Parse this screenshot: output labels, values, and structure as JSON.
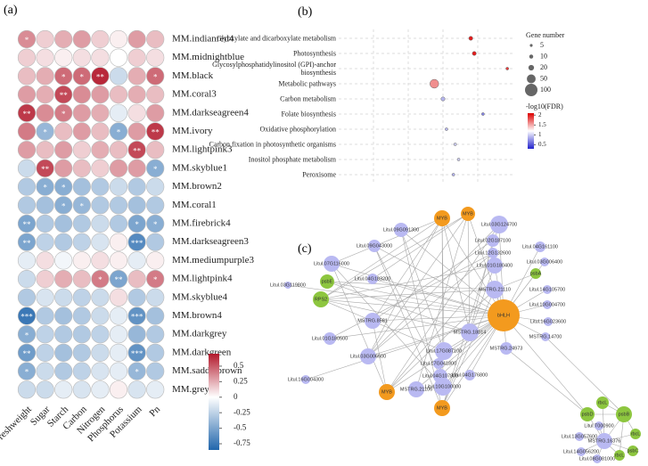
{
  "chart_data": [
    {
      "type": "heatmap",
      "label": "(a)",
      "rows": [
        "MM.indianred4",
        "MM.midnightblue",
        "MM.black",
        "MM.coral3",
        "MM.darkseagreen4",
        "MM.ivory",
        "MM.lightpink3",
        "MM.skyblue1",
        "MM.brown2",
        "MM.coral1",
        "MM.firebrick4",
        "MM.darkseagreen3",
        "MM.mediumpurple3",
        "MM.lightpink4",
        "MM.skyblue4",
        "MM.brown4",
        "MM.darkgrey",
        "MM.darkgreen",
        "MM.saddlebrown",
        "MM.grey"
      ],
      "columns": [
        "Freshweight",
        "Sugar",
        "Starch",
        "Carbon",
        "Nitrogen",
        "Phosphorus",
        "Potassium",
        "Pn"
      ],
      "values": [
        [
          0.35,
          0.15,
          0.25,
          0.3,
          0.15,
          0.05,
          0.3,
          0.2
        ],
        [
          0.15,
          0.1,
          0.05,
          0.1,
          0.1,
          0.0,
          0.15,
          0.1
        ],
        [
          0.2,
          0.25,
          0.45,
          0.45,
          0.65,
          -0.2,
          0.25,
          0.45
        ],
        [
          0.3,
          0.25,
          0.55,
          0.35,
          0.3,
          0.2,
          0.25,
          0.2
        ],
        [
          0.6,
          0.35,
          0.4,
          0.3,
          0.25,
          -0.1,
          0.1,
          0.3
        ],
        [
          0.4,
          -0.4,
          0.2,
          0.3,
          0.2,
          -0.45,
          0.3,
          0.6
        ],
        [
          0.3,
          0.2,
          0.3,
          0.15,
          0.25,
          0.2,
          0.55,
          0.2
        ],
        [
          -0.2,
          0.55,
          0.3,
          0.2,
          0.15,
          0.3,
          0.3,
          -0.45
        ],
        [
          -0.3,
          -0.45,
          -0.45,
          -0.35,
          -0.3,
          -0.2,
          -0.3,
          -0.2
        ],
        [
          -0.3,
          -0.35,
          -0.45,
          -0.4,
          -0.3,
          -0.3,
          -0.35,
          -0.3
        ],
        [
          -0.5,
          -0.3,
          -0.35,
          -0.3,
          -0.2,
          -0.3,
          -0.5,
          -0.45
        ],
        [
          -0.5,
          -0.25,
          -0.3,
          -0.25,
          -0.15,
          0.05,
          -0.65,
          -0.3
        ],
        [
          -0.1,
          0.1,
          -0.05,
          0.05,
          0.1,
          0.05,
          -0.1,
          0.05
        ],
        [
          -0.2,
          0.15,
          0.25,
          0.2,
          0.4,
          -0.5,
          0.2,
          0.4
        ],
        [
          -0.3,
          -0.15,
          -0.2,
          -0.25,
          -0.2,
          0.1,
          -0.3,
          -0.2
        ],
        [
          -0.75,
          -0.3,
          -0.35,
          -0.3,
          -0.2,
          -0.1,
          -0.6,
          -0.35
        ],
        [
          -0.45,
          -0.25,
          -0.3,
          -0.3,
          -0.25,
          -0.1,
          -0.4,
          -0.3
        ],
        [
          -0.55,
          -0.25,
          -0.35,
          -0.3,
          -0.2,
          -0.1,
          -0.6,
          -0.3
        ],
        [
          -0.45,
          -0.2,
          -0.3,
          -0.25,
          -0.15,
          -0.1,
          -0.4,
          -0.3
        ],
        [
          -0.2,
          -0.2,
          -0.1,
          -0.15,
          -0.1,
          0.05,
          -0.15,
          -0.1
        ]
      ],
      "annotations": [
        [
          "*",
          null,
          null,
          null,
          null,
          null,
          null,
          null
        ],
        [
          null,
          null,
          null,
          null,
          null,
          null,
          null,
          null
        ],
        [
          null,
          null,
          "*",
          "*",
          "**",
          null,
          null,
          "*"
        ],
        [
          null,
          null,
          "**",
          null,
          null,
          null,
          null,
          null
        ],
        [
          "**",
          null,
          "*",
          null,
          null,
          null,
          null,
          null
        ],
        [
          null,
          "*",
          null,
          null,
          null,
          "*",
          null,
          "**"
        ],
        [
          null,
          null,
          null,
          null,
          null,
          null,
          "**",
          null
        ],
        [
          null,
          "**",
          null,
          null,
          null,
          null,
          null,
          "*"
        ],
        [
          null,
          "*",
          "*",
          null,
          null,
          null,
          null,
          null
        ],
        [
          null,
          null,
          "*",
          "*",
          null,
          null,
          null,
          null
        ],
        [
          "**",
          null,
          null,
          null,
          null,
          null,
          "*",
          "*"
        ],
        [
          "**",
          null,
          null,
          null,
          null,
          null,
          "***",
          null
        ],
        [
          null,
          null,
          null,
          null,
          null,
          null,
          null,
          null
        ],
        [
          null,
          null,
          null,
          null,
          "*",
          "**",
          null,
          "*"
        ],
        [
          null,
          null,
          null,
          null,
          null,
          null,
          null,
          null
        ],
        [
          "***",
          null,
          null,
          null,
          null,
          null,
          "***",
          null
        ],
        [
          "*",
          null,
          null,
          null,
          null,
          null,
          null,
          null
        ],
        [
          "**",
          null,
          null,
          null,
          null,
          null,
          "***",
          null
        ],
        [
          "*",
          null,
          null,
          null,
          null,
          null,
          "*",
          null
        ],
        [
          null,
          null,
          null,
          null,
          null,
          null,
          null,
          null
        ]
      ],
      "clim": [
        -0.85,
        0.7
      ],
      "cticks": [
        0.5,
        0.25,
        0,
        -0.25,
        -0.5,
        -0.75
      ],
      "colors": [
        "#2166ac",
        "#ffffff",
        "#b2182b"
      ]
    },
    {
      "type": "bubble",
      "label": "(b)",
      "categories": [
        "Glyoxylate and dicarboxylate metabolism",
        "Photosynthesis",
        "Glycosylphosphatidylinositol (GPI)-anchor biosynthesis",
        "Metabolic pathways",
        "Carbon metabolism",
        "Folate biosynthesis",
        "Oxidative phosphorylation",
        "Carbon fixation in photosynthetic organisms",
        "Inositol phosphate metabolism",
        "Peroxisome"
      ],
      "x": [
        0.76,
        0.78,
        0.97,
        0.55,
        0.6,
        0.83,
        0.62,
        0.67,
        0.69,
        0.66
      ],
      "sizes": [
        10,
        10,
        5,
        50,
        10,
        5,
        5,
        5,
        5,
        5
      ],
      "color_values": [
        2.0,
        2.0,
        1.9,
        1.6,
        0.9,
        0.7,
        0.9,
        1.0,
        1.0,
        0.9
      ],
      "xlim": [
        0,
        1
      ],
      "size_legend_title": "Gene number",
      "size_ticks": [
        5,
        10,
        20,
        50,
        100
      ],
      "color_title": "-log10(FDR)",
      "clim": [
        0.3,
        2.1
      ],
      "cticks": [
        2,
        1.5,
        1,
        0.5
      ],
      "colors": [
        "#2222cc",
        "#ffffff",
        "#dd0000"
      ],
      "grid": true
    }
  ],
  "network": {
    "label": "(c)",
    "nodes": [
      {
        "label": "Litul.09G091300",
        "color": "#b9b9f2"
      },
      {
        "label": "MYB",
        "color": "#f39a1e"
      },
      {
        "label": "MYB",
        "color": "#f39a1e"
      },
      {
        "label": "Litul.03G124700",
        "color": "#b9b9f2"
      },
      {
        "label": "Litul.09G043000",
        "color": "#b9b9f2"
      },
      {
        "label": "Litul.02G187100",
        "color": "#b9b9f2"
      },
      {
        "label": "Litul.12G132600",
        "color": "#b9b9f2"
      },
      {
        "label": "Litul.04G161100",
        "color": "#b9b9f2"
      },
      {
        "label": "Litul.03G006400",
        "color": "#b9b9f2"
      },
      {
        "label": "Litul.07G116000",
        "color": "#b9b9f2"
      },
      {
        "label": "Litul.01G180400",
        "color": "#b9b9f2"
      },
      {
        "label": "psbE",
        "color": "#8dc63f"
      },
      {
        "label": "psbA",
        "color": "#8dc63f"
      },
      {
        "label": "Litul.03G119800",
        "color": "#b9b9f2"
      },
      {
        "label": "Litul.04G183200",
        "color": "#b9b9f2"
      },
      {
        "label": "Litul.14G105700",
        "color": "#b9b9f2"
      },
      {
        "label": "MSTRG.21110",
        "color": "#b9b9f2"
      },
      {
        "label": "RPS2",
        "color": "#8dc63f"
      },
      {
        "label": "Litul.10G004700",
        "color": "#b9b9f2"
      },
      {
        "label": "bHLH",
        "color": "#f39a1e"
      },
      {
        "label": "Litul.16G023600",
        "color": "#b9b9f2"
      },
      {
        "label": "MSTRG.8581",
        "color": "#b9b9f2"
      },
      {
        "label": "MSTRG.18814",
        "color": "#b9b9f2"
      },
      {
        "label": "MSTRG.14700",
        "color": "#b9b9f2"
      },
      {
        "label": "MSTRG.24973",
        "color": "#b9b9f2"
      },
      {
        "label": "Litul.01G180500",
        "color": "#b9b9f2"
      },
      {
        "label": "Litul.17G087100",
        "color": "#b9b9f2"
      },
      {
        "label": "Litul.03G006500",
        "color": "#b9b9f2"
      },
      {
        "label": "Litul.17G041800",
        "color": "#b9b9f2"
      },
      {
        "label": "Litul.04G107800",
        "color": "#b9b9f2"
      },
      {
        "label": "Litul.04G176800",
        "color": "#b9b9f2"
      },
      {
        "label": "Litul.16G004300",
        "color": "#b9b9f2"
      },
      {
        "label": "MYB",
        "color": "#f39a1e"
      },
      {
        "label": "MSTRG.21106",
        "color": "#b9b9f2"
      },
      {
        "label": "Litul.10G100000",
        "color": "#b9b9f2"
      },
      {
        "label": "MYB",
        "color": "#f39a1e"
      },
      {
        "label": "psbD",
        "color": "#8dc63f"
      },
      {
        "label": "rbcL",
        "color": "#8dc63f"
      },
      {
        "label": "psbB",
        "color": "#8dc63f"
      },
      {
        "label": "Litul.T000900",
        "color": "#b9b9f2"
      },
      {
        "label": "rbcL",
        "color": "#8dc63f"
      },
      {
        "label": "MSTRG.16376",
        "color": "#b9b9f2"
      },
      {
        "label": "Litul.13G057600",
        "color": "#b9b9f2"
      },
      {
        "label": "Litul.14G056200",
        "color": "#b9b9f2"
      },
      {
        "label": "Litul.08G081000",
        "color": "#b9b9f2"
      },
      {
        "label": "rbcL",
        "color": "#8dc63f"
      },
      {
        "label": "psbC",
        "color": "#8dc63f"
      }
    ]
  }
}
